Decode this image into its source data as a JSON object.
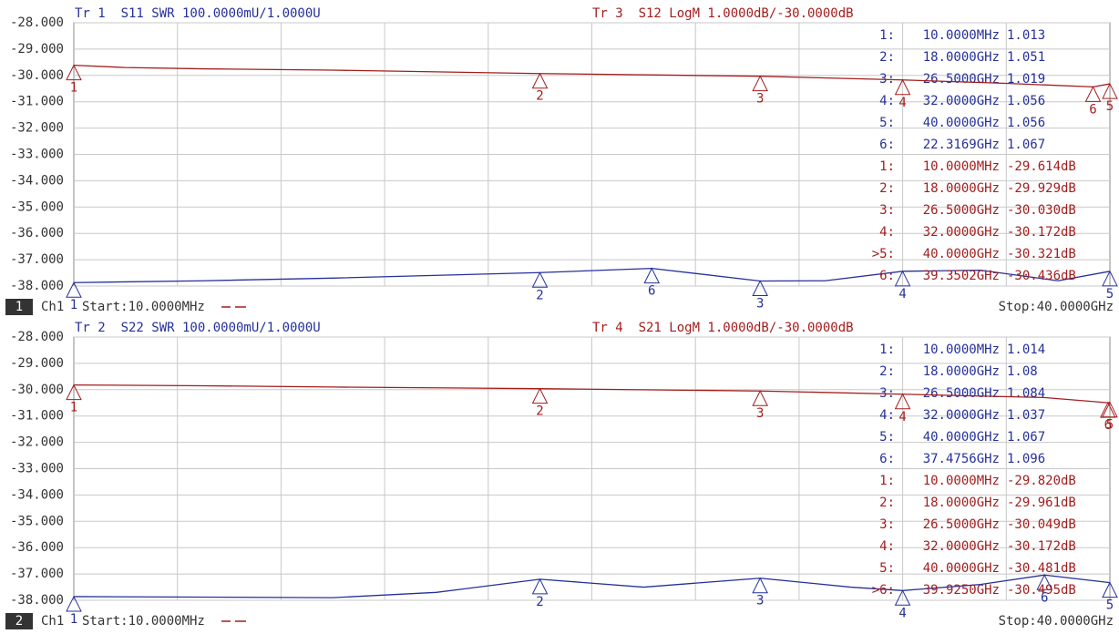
{
  "chart_data": [
    {
      "type": "line",
      "ylim": [
        -38,
        -28
      ],
      "y2lim": [
        1,
        2
      ],
      "xlim": [
        0.01,
        40
      ],
      "grid": true,
      "yticks": [
        {
          "value": -28,
          "label": "-28.000"
        },
        {
          "value": -29,
          "label": "-29.000"
        },
        {
          "value": -30,
          "label": "-30.000"
        },
        {
          "value": -31,
          "label": "-31.000"
        },
        {
          "value": -32,
          "label": "-32.000"
        },
        {
          "value": -33,
          "label": "-33.000"
        },
        {
          "value": -34,
          "label": "-34.000"
        },
        {
          "value": -35,
          "label": "-35.000"
        },
        {
          "value": -36,
          "label": "-36.000"
        },
        {
          "value": -37,
          "label": "-37.000"
        },
        {
          "value": -38,
          "label": "-38.000"
        }
      ],
      "channel_number": "1",
      "channel": "Ch1",
      "start": "Start:10.0000MHz",
      "stop": "Stop:40.0000GHz",
      "series": [
        {
          "name": "Tr 1  S11 SWR 100.0000mU/1.0000U",
          "color": "#25309a",
          "axis": "y2",
          "x": [
            0.01,
            5,
            10,
            18,
            22.3169,
            26.5,
            29,
            32,
            35,
            38,
            40
          ],
          "values": [
            1.013,
            1.02,
            1.03,
            1.051,
            1.067,
            1.019,
            1.02,
            1.056,
            1.06,
            1.02,
            1.056
          ],
          "markers": [
            {
              "name": "1",
              "row": "1:",
              "x": {
                "value": 0.01,
                "label": "10.0000MHz"
              },
              "y": 1.013
            },
            {
              "name": "2",
              "row": "2:",
              "x": {
                "value": 18,
                "label": "18.0000GHz"
              },
              "y": 1.051
            },
            {
              "name": "3",
              "row": "3:",
              "x": {
                "value": 26.5,
                "label": "26.5000GHz"
              },
              "y": 1.019
            },
            {
              "name": "4",
              "row": "4:",
              "x": {
                "value": 32,
                "label": "32.0000GHz"
              },
              "y": 1.056
            },
            {
              "name": "5",
              "row": "5:",
              "x": {
                "value": 40,
                "label": "40.0000GHz"
              },
              "y": 1.056
            },
            {
              "name": "6",
              "row": "6:",
              "x": {
                "value": 22.3169,
                "label": "22.3169GHz"
              },
              "y": 1.067
            }
          ]
        },
        {
          "name": "Tr 3  S12 LogM 1.0000dB/-30.0000dB",
          "color": "#a31d1d",
          "x": [
            0.01,
            2,
            5,
            10,
            18,
            26.5,
            32,
            36,
            39.3502,
            40
          ],
          "values": [
            -29.614,
            -29.7,
            -29.75,
            -29.8,
            -29.929,
            -30.03,
            -30.172,
            -30.3,
            -30.436,
            -30.321
          ],
          "markers": [
            {
              "name": "1",
              "row": "1:",
              "x": {
                "value": 0.01,
                "label": "10.0000MHz"
              },
              "y": {
                "value": -29.614,
                "label": "-29.614dB"
              }
            },
            {
              "name": "2",
              "row": "2:",
              "x": {
                "value": 18,
                "label": "18.0000GHz"
              },
              "y": {
                "value": -29.929,
                "label": "-29.929dB"
              }
            },
            {
              "name": "3",
              "row": "3:",
              "x": {
                "value": 26.5,
                "label": "26.5000GHz"
              },
              "y": {
                "value": -30.03,
                "label": "-30.030dB"
              }
            },
            {
              "name": "4",
              "row": "4:",
              "x": {
                "value": 32,
                "label": "32.0000GHz"
              },
              "y": {
                "value": -30.172,
                "label": "-30.172dB"
              }
            },
            {
              "name": "5",
              "row": ">5:",
              "x": {
                "value": 40,
                "label": "40.0000GHz"
              },
              "y": {
                "value": -30.321,
                "label": "-30.321dB"
              }
            },
            {
              "name": "6",
              "row": "6:",
              "x": {
                "value": 39.3502,
                "label": "39.3502GHz"
              },
              "y": {
                "value": -30.436,
                "label": "-30.436dB"
              }
            }
          ]
        }
      ]
    },
    {
      "type": "line",
      "ylim": [
        -38,
        -28
      ],
      "y2lim": [
        1,
        2
      ],
      "xlim": [
        0.01,
        40
      ],
      "grid": true,
      "yticks": [
        {
          "value": -28,
          "label": "-28.000"
        },
        {
          "value": -29,
          "label": "-29.000"
        },
        {
          "value": -30,
          "label": "-30.000"
        },
        {
          "value": -31,
          "label": "-31.000"
        },
        {
          "value": -32,
          "label": "-32.000"
        },
        {
          "value": -33,
          "label": "-33.000"
        },
        {
          "value": -34,
          "label": "-34.000"
        },
        {
          "value": -35,
          "label": "-35.000"
        },
        {
          "value": -36,
          "label": "-36.000"
        },
        {
          "value": -37,
          "label": "-37.000"
        },
        {
          "value": -38,
          "label": "-38.000"
        }
      ],
      "channel_number": "2",
      "channel": "Ch1",
      "start": "Start:10.0000MHz",
      "stop": "Stop:40.0000GHz",
      "series": [
        {
          "name": "Tr 2  S22 SWR 100.0000mU/1.0000U",
          "color": "#25309a",
          "axis": "y2",
          "x": [
            0.01,
            10,
            14,
            18,
            22,
            26.5,
            30,
            32,
            35,
            37.4756,
            40
          ],
          "values": [
            1.014,
            1.01,
            1.03,
            1.08,
            1.05,
            1.084,
            1.05,
            1.037,
            1.06,
            1.096,
            1.067
          ],
          "markers": [
            {
              "name": "1",
              "row": "1:",
              "x": {
                "value": 0.01,
                "label": "10.0000MHz"
              },
              "y": 1.014
            },
            {
              "name": "2",
              "row": "2:",
              "x": {
                "value": 18,
                "label": "18.0000GHz"
              },
              "y": 1.08
            },
            {
              "name": "3",
              "row": "3:",
              "x": {
                "value": 26.5,
                "label": "26.5000GHz"
              },
              "y": 1.084
            },
            {
              "name": "4",
              "row": "4:",
              "x": {
                "value": 32,
                "label": "32.0000GHz"
              },
              "y": 1.037
            },
            {
              "name": "5",
              "row": "5:",
              "x": {
                "value": 40,
                "label": "40.0000GHz"
              },
              "y": 1.067
            },
            {
              "name": "6",
              "row": "6:",
              "x": {
                "value": 37.4756,
                "label": "37.4756GHz"
              },
              "y": 1.096
            }
          ]
        },
        {
          "name": "Tr 4  S21 LogM 1.0000dB/-30.0000dB",
          "color": "#a31d1d",
          "x": [
            0.01,
            5,
            10,
            18,
            26.5,
            32,
            37.5,
            39.925,
            40
          ],
          "values": [
            -29.82,
            -29.85,
            -29.9,
            -29.961,
            -30.049,
            -30.172,
            -30.3,
            -30.495,
            -30.481
          ],
          "markers": [
            {
              "name": "1",
              "row": "1:",
              "x": {
                "value": 0.01,
                "label": "10.0000MHz"
              },
              "y": {
                "value": -29.82,
                "label": "-29.820dB"
              }
            },
            {
              "name": "2",
              "row": "2:",
              "x": {
                "value": 18,
                "label": "18.0000GHz"
              },
              "y": {
                "value": -29.961,
                "label": "-29.961dB"
              }
            },
            {
              "name": "3",
              "row": "3:",
              "x": {
                "value": 26.5,
                "label": "26.5000GHz"
              },
              "y": {
                "value": -30.049,
                "label": "-30.049dB"
              }
            },
            {
              "name": "4",
              "row": "4:",
              "x": {
                "value": 32,
                "label": "32.0000GHz"
              },
              "y": {
                "value": -30.172,
                "label": "-30.172dB"
              }
            },
            {
              "name": "5",
              "row": "5:",
              "x": {
                "value": 40,
                "label": "40.0000GHz"
              },
              "y": {
                "value": -30.481,
                "label": "-30.481dB"
              }
            },
            {
              "name": "6",
              "row": ">6:",
              "x": {
                "value": 39.925,
                "label": "39.9250GHz"
              },
              "y": {
                "value": -30.495,
                "label": "-30.495dB"
              }
            }
          ]
        }
      ]
    }
  ]
}
